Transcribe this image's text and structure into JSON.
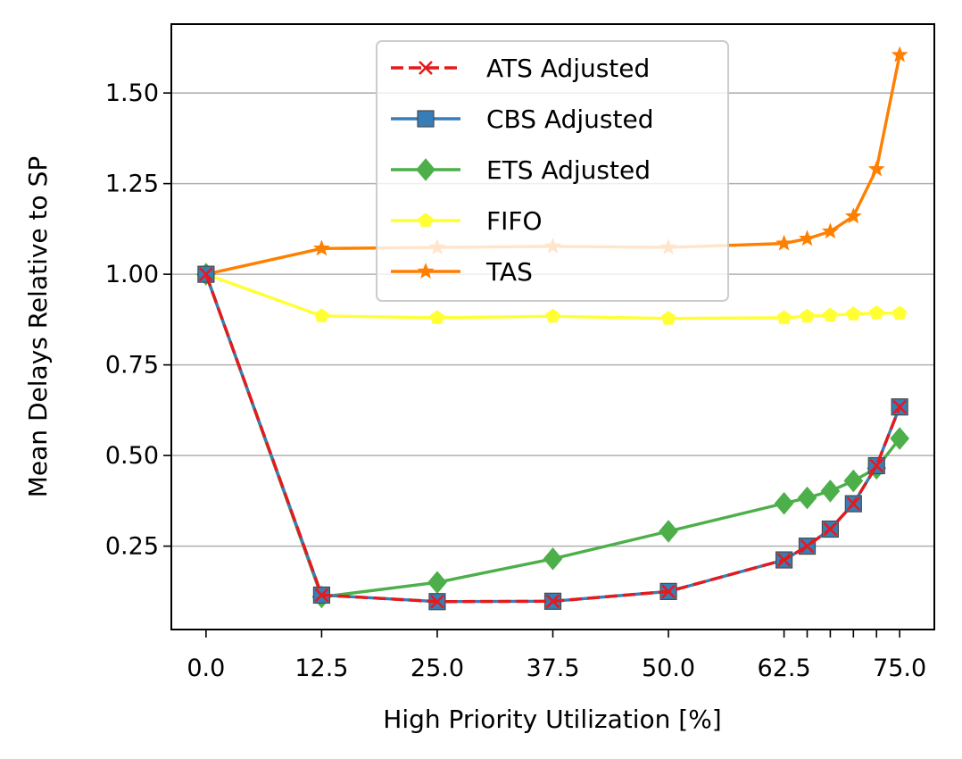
{
  "chart_data": {
    "type": "line",
    "title": "",
    "xlabel": "High Priority Utilization [%]",
    "ylabel": "Mean Delays Relative to SP",
    "xlim": [
      -3.75,
      78.75
    ],
    "ylim": [
      0.02,
      1.69
    ],
    "grid": "horizontal",
    "legend_position": "top-center",
    "xticks": [
      0.0,
      12.5,
      25.0,
      37.5,
      50.0,
      62.5,
      75.0
    ],
    "xtick_labels": [
      "0.0",
      "12.5",
      "25.0",
      "37.5",
      "50.0",
      "62.5",
      "75.0"
    ],
    "x_minor_ticks": [
      65.0,
      67.5,
      70.0,
      72.5
    ],
    "yticks": [
      0.25,
      0.5,
      0.75,
      1.0,
      1.25,
      1.5
    ],
    "ytick_labels": [
      "0.25",
      "0.50",
      "0.75",
      "1.00",
      "1.25",
      "1.50"
    ],
    "x": [
      0.0,
      12.5,
      25.0,
      37.5,
      50.0,
      62.5,
      65.0,
      67.5,
      70.0,
      72.5,
      75.0
    ],
    "series": [
      {
        "name": "ATS Adjusted",
        "color": "#e41a1c",
        "marker": "x",
        "dashed": true,
        "values": [
          1.0,
          0.115,
          0.097,
          0.098,
          0.125,
          0.212,
          0.25,
          0.297,
          0.367,
          0.472,
          0.634
        ]
      },
      {
        "name": "CBS Adjusted",
        "color": "#377eb8",
        "marker": "square",
        "dashed": false,
        "values": [
          1.0,
          0.115,
          0.097,
          0.098,
          0.125,
          0.212,
          0.25,
          0.297,
          0.367,
          0.472,
          0.634
        ]
      },
      {
        "name": "ETS Adjusted",
        "color": "#4daf4a",
        "marker": "diamond",
        "dashed": false,
        "values": [
          1.0,
          0.11,
          0.15,
          0.215,
          0.291,
          0.368,
          0.383,
          0.402,
          0.43,
          0.465,
          0.547
        ]
      },
      {
        "name": "FIFO",
        "color": "#ffff33",
        "marker": "pentagon",
        "dashed": false,
        "values": [
          1.0,
          0.885,
          0.88,
          0.884,
          0.878,
          0.88,
          0.884,
          0.887,
          0.89,
          0.893,
          0.892
        ]
      },
      {
        "name": "TAS",
        "color": "#ff7f00",
        "marker": "star",
        "dashed": false,
        "values": [
          1.0,
          1.071,
          1.074,
          1.077,
          1.074,
          1.085,
          1.098,
          1.118,
          1.16,
          1.29,
          1.605
        ]
      }
    ]
  }
}
